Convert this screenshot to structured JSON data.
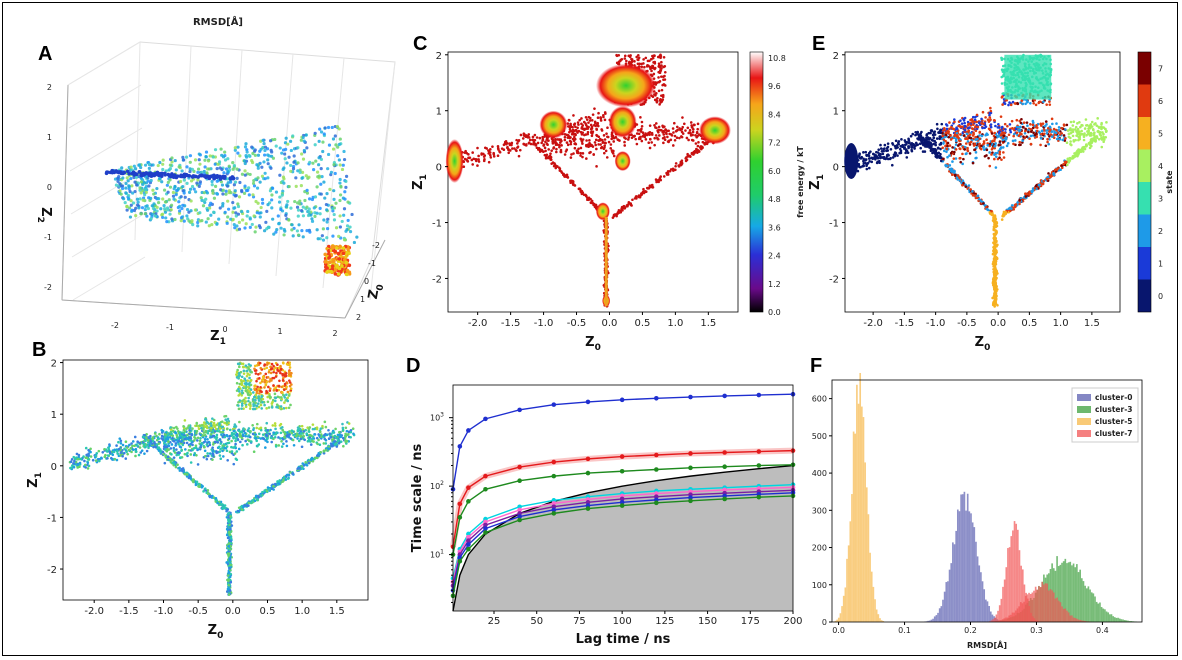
{
  "panels": {
    "A": {
      "label": "A",
      "title": "RMSD[Å]",
      "xlabel": "Z",
      "xsub": "1",
      "ylabel": "Z",
      "ysub": "0",
      "zlabel": "Z",
      "zsub": "2",
      "x_ticks": [
        "-2",
        "-1",
        "0",
        "1",
        "2"
      ],
      "y_ticks": [
        "-2",
        "-1",
        "0",
        "1",
        "2"
      ],
      "z_ticks": [
        "-2",
        "-1",
        "0",
        "1",
        "2"
      ]
    },
    "B": {
      "label": "B",
      "xlabel": "Z",
      "xsub": "0",
      "ylabel": "Z",
      "ysub": "1",
      "x_ticks": [
        "-2.0",
        "-1.5",
        "-1.0",
        "-0.5",
        "0.0",
        "0.5",
        "1.0",
        "1.5"
      ],
      "y_ticks": [
        "-2",
        "-1",
        "0",
        "1",
        "2"
      ]
    },
    "C": {
      "label": "C",
      "xlabel": "Z",
      "xsub": "0",
      "ylabel": "Z",
      "ysub": "1",
      "x_ticks": [
        "-2.0",
        "-1.5",
        "-1.0",
        "-0.5",
        "0.0",
        "0.5",
        "1.0",
        "1.5"
      ],
      "y_ticks": [
        "-2",
        "-1",
        "0",
        "1",
        "2"
      ],
      "colorbar_label": "free energy / kT",
      "colorbar_ticks": [
        "0.0",
        "1.2",
        "2.4",
        "3.6",
        "4.8",
        "6.0",
        "7.2",
        "8.4",
        "9.6",
        "10.8"
      ]
    },
    "D": {
      "label": "D",
      "xlabel": "Lag time / ns",
      "ylabel": "Time scale / ns",
      "x_ticks": [
        "25",
        "50",
        "75",
        "100",
        "125",
        "150",
        "175",
        "200"
      ],
      "y_ticks": [
        "10",
        "10",
        "10"
      ],
      "y_exps": [
        "1",
        "2",
        "3"
      ]
    },
    "E": {
      "label": "E",
      "xlabel": "Z",
      "xsub": "0",
      "ylabel": "Z",
      "ysub": "1",
      "x_ticks": [
        "-2.0",
        "-1.5",
        "-1.0",
        "-0.5",
        "0.0",
        "0.5",
        "1.0",
        "1.5"
      ],
      "y_ticks": [
        "-2",
        "-1",
        "0",
        "1",
        "2"
      ],
      "colorbar_label": "state",
      "colorbar_ticks": [
        "0",
        "1",
        "2",
        "3",
        "4",
        "5",
        "6",
        "7"
      ]
    },
    "F": {
      "label": "F",
      "xlabel": "RMSD[Å]",
      "x_ticks": [
        "0.0",
        "0.1",
        "0.2",
        "0.3",
        "0.4"
      ],
      "y_ticks": [
        "0",
        "100",
        "200",
        "300",
        "400",
        "500",
        "600"
      ],
      "legend": [
        "cluster-0",
        "cluster-3",
        "cluster-5",
        "cluster-7"
      ]
    }
  },
  "colors": {
    "cluster-0": "#5b5fb0",
    "cluster-3": "#3ea03e",
    "cluster-5": "#f7b84a",
    "cluster-7": "#f25555",
    "its_blue": "#1f2fd0",
    "its_red": "#e41a1c",
    "its_green": "#1e8a1e",
    "its_black": "#111111",
    "gray_fill": "#bdbdbd"
  },
  "chart_data": [
    {
      "panel": "D",
      "type": "line",
      "xlabel": "Lag time / ns",
      "ylabel": "Time scale / ns",
      "yscale": "log",
      "xlim": [
        1,
        200
      ],
      "ylim": [
        1.5,
        3000
      ],
      "x": [
        1,
        5,
        10,
        20,
        40,
        60,
        80,
        100,
        120,
        140,
        160,
        180,
        200
      ],
      "series": [
        {
          "color": "#1f2fd0",
          "values": [
            90,
            380,
            650,
            960,
            1300,
            1550,
            1700,
            1820,
            1920,
            2000,
            2080,
            2140,
            2200
          ]
        },
        {
          "color": "#e41a1c",
          "values": [
            13,
            55,
            95,
            140,
            190,
            225,
            250,
            270,
            285,
            300,
            310,
            320,
            330
          ]
        },
        {
          "color": "#1e8a1e",
          "values": [
            10,
            35,
            60,
            90,
            120,
            140,
            155,
            165,
            175,
            185,
            192,
            200,
            205
          ]
        },
        {
          "color": "#00d5e0",
          "values": [
            4.5,
            12,
            20,
            33,
            50,
            62,
            70,
            78,
            85,
            90,
            95,
            100,
            105
          ]
        },
        {
          "color": "#ff66cc",
          "values": [
            4,
            11,
            18,
            30,
            45,
            56,
            64,
            72,
            78,
            83,
            88,
            92,
            96
          ]
        },
        {
          "color": "#7a1fa2",
          "values": [
            3.5,
            10,
            16,
            27,
            40,
            50,
            58,
            65,
            70,
            75,
            79,
            83,
            87
          ]
        },
        {
          "color": "#1f2fd0",
          "values": [
            3,
            9,
            14,
            24,
            36,
            45,
            52,
            58,
            63,
            68,
            72,
            76,
            80
          ]
        },
        {
          "color": "#1e8a1e",
          "values": [
            2.5,
            8,
            12,
            21,
            32,
            40,
            47,
            52,
            57,
            61,
            65,
            69,
            72
          ]
        }
      ],
      "shaded_region_upper": [
        1,
        5,
        10,
        20,
        40,
        60,
        80,
        100,
        120,
        140,
        160,
        180,
        200
      ]
    },
    {
      "panel": "F",
      "type": "bar",
      "xlabel": "RMSD[Å]",
      "xlim": [
        -0.01,
        0.46
      ],
      "ylim": [
        0,
        650
      ],
      "series": [
        {
          "name": "cluster-0",
          "center": 0.19,
          "sd": 0.018,
          "peak": 330
        },
        {
          "name": "cluster-3",
          "center": 0.34,
          "sd": 0.035,
          "peak": 165
        },
        {
          "name": "cluster-5",
          "center": 0.03,
          "sd": 0.011,
          "peak": 630
        },
        {
          "name": "cluster-7",
          "center": 0.265,
          "sd": 0.012,
          "peak": 250
        },
        {
          "name": "cluster-7",
          "center": 0.305,
          "sd": 0.025,
          "peak": 100
        }
      ]
    }
  ]
}
